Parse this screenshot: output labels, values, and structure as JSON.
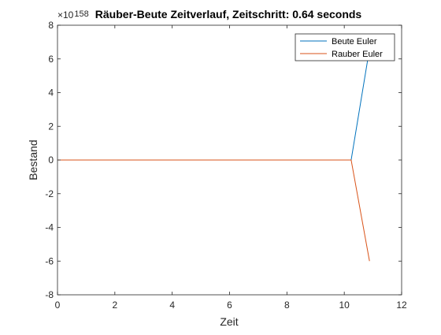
{
  "chart_data": {
    "type": "line",
    "title": "Räuber-Beute Zeitverlauf, Zeitschritt: 0.64 seconds",
    "xlabel": "Zeit",
    "ylabel": "Bestand",
    "xlim": [
      0,
      12
    ],
    "ylim": [
      -8,
      8
    ],
    "y_exponent_text": "×10",
    "y_exponent_power": "158",
    "xticks": [
      0,
      2,
      4,
      6,
      8,
      10,
      12
    ],
    "yticks": [
      -8,
      -6,
      -4,
      -2,
      0,
      2,
      4,
      6,
      8
    ],
    "legend_position": "top-right",
    "grid": false,
    "series": [
      {
        "name": "Beute Euler",
        "color": "#0072BD",
        "x": [
          0,
          0.64,
          1.28,
          1.92,
          2.56,
          3.2,
          3.84,
          4.48,
          5.12,
          5.76,
          6.4,
          7.04,
          7.68,
          8.32,
          8.96,
          9.6,
          10.24,
          10.88
        ],
        "y": [
          0,
          0,
          0,
          0,
          0,
          0,
          0,
          0,
          0,
          0,
          0,
          0,
          0,
          0,
          0,
          0,
          0,
          6.6
        ]
      },
      {
        "name": "Rauber Euler",
        "color": "#D95319",
        "x": [
          0,
          0.64,
          1.28,
          1.92,
          2.56,
          3.2,
          3.84,
          4.48,
          5.12,
          5.76,
          6.4,
          7.04,
          7.68,
          8.32,
          8.96,
          9.6,
          10.24,
          10.88
        ],
        "y": [
          0,
          0,
          0,
          0,
          0,
          0,
          0,
          0,
          0,
          0,
          0,
          0,
          0,
          0,
          0,
          0,
          0,
          -6.0
        ]
      }
    ]
  }
}
